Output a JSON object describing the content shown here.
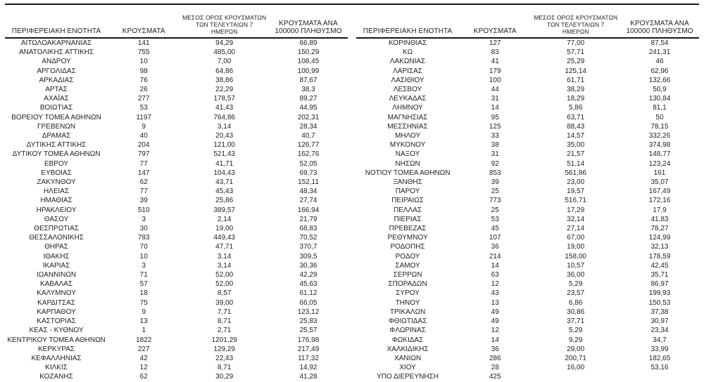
{
  "colors": {
    "background": "#ffffff",
    "text": "#1f1f1f",
    "rule": "#161616"
  },
  "table_headers": {
    "region": "ΠΕΡΙΦΕΡΕΙΑΚΗ ΕΝΟΤΗΤΑ",
    "cases": "ΚΡΟΥΣΜΑΤΑ",
    "avg7": "ΜΕΣΟΣ ΟΡΟΣ ΚΡΟΥΣΜΑΤΩΝ ΤΩΝ ΤΕΛΕΥΤΑΙΩΝ 7 ΗΜΕΡΩΝ",
    "per100k": "ΚΡΟΥΣΜΑΤΑ ΑΝΑ 100000 ΠΛΗΘΥΣΜΟ"
  },
  "left_table": {
    "rows": [
      [
        "ΑΙΤΩΛΟΑΚΑΡΝΑΝΙΑΣ",
        "141",
        "94,29",
        "66,89"
      ],
      [
        "ΑΝΑΤΟΛΙΚΗΣ ΑΤΤΙΚΗΣ",
        "755",
        "485,00",
        "150,29"
      ],
      [
        "ΑΝΔΡΟΥ",
        "10",
        "7,00",
        "108,45"
      ],
      [
        "ΑΡΓΟΛΙΔΑΣ",
        "98",
        "64,86",
        "100,99"
      ],
      [
        "ΑΡΚΑΔΙΑΣ",
        "76",
        "38,86",
        "87,67"
      ],
      [
        "ΑΡΤΑΣ",
        "26",
        "22,29",
        "38,3"
      ],
      [
        "ΑΧΑΪΑΣ",
        "277",
        "178,57",
        "89,27"
      ],
      [
        "ΒΟΙΩΤΙΑΣ",
        "53",
        "41,43",
        "44,95"
      ],
      [
        "ΒΟΡΕΙΟΥ ΤΟΜΕΑ ΑΘΗΝΩΝ",
        "1197",
        "764,86",
        "202,31"
      ],
      [
        "ΓΡΕΒΕΝΩΝ",
        "9",
        "3,14",
        "28,34"
      ],
      [
        "ΔΡΑΜΑΣ",
        "40",
        "20,43",
        "40,7"
      ],
      [
        "ΔΥΤΙΚΗΣ ΑΤΤΙΚΗΣ",
        "204",
        "121,00",
        "126,77"
      ],
      [
        "ΔΥΤΙΚΟΥ ΤΟΜΕΑ ΑΘΗΝΩΝ",
        "797",
        "521,43",
        "162,76"
      ],
      [
        "ΕΒΡΟΥ",
        "77",
        "41,71",
        "52,05"
      ],
      [
        "ΕΥΒΟΙΑΣ",
        "147",
        "104,43",
        "69,73"
      ],
      [
        "ΖΑΚΥΝΘΟΥ",
        "62",
        "43,71",
        "152,11"
      ],
      [
        "ΗΛΕΙΑΣ",
        "77",
        "45,43",
        "48,34"
      ],
      [
        "ΗΜΑΘΙΑΣ",
        "39",
        "25,86",
        "27,74"
      ],
      [
        "ΗΡΑΚΛΕΙΟΥ",
        "510",
        "389,57",
        "166,94"
      ],
      [
        "ΘΑΣΟΥ",
        "3",
        "2,14",
        "21,79"
      ],
      [
        "ΘΕΣΠΡΩΤΙΑΣ",
        "30",
        "19,00",
        "68,83"
      ],
      [
        "ΘΕΣΣΑΛΟΝΙΚΗΣ",
        "783",
        "449,43",
        "70,52"
      ],
      [
        "ΘΗΡΑΣ",
        "70",
        "47,71",
        "370,7"
      ],
      [
        "ΙΘΑΚΗΣ",
        "10",
        "3,14",
        "309,5"
      ],
      [
        "ΙΚΑΡΙΑΣ",
        "3",
        "3,14",
        "30,36"
      ],
      [
        "ΙΩΑΝΝΙΝΩΝ",
        "71",
        "52,00",
        "42,29"
      ],
      [
        "ΚΑΒΑΛΑΣ",
        "57",
        "52,00",
        "45,63"
      ],
      [
        "ΚΑΛΥΜΝΟΥ",
        "18",
        "8,57",
        "61,12"
      ],
      [
        "ΚΑΡΔΙΤΣΑΣ",
        "75",
        "39,00",
        "66,05"
      ],
      [
        "ΚΑΡΠΑΘΟΥ",
        "9",
        "7,71",
        "123,12"
      ],
      [
        "ΚΑΣΤΟΡΙΑΣ",
        "13",
        "8,71",
        "25,83"
      ],
      [
        "ΚΕΑΣ - ΚΥΘΝΟΥ",
        "1",
        "2,71",
        "25,57"
      ],
      [
        "ΚΕΝΤΡΙΚΟΥ ΤΟΜΕΑ ΑΘΗΝΩΝ",
        "1822",
        "1201,29",
        "176,98"
      ],
      [
        "ΚΕΡΚΥΡΑΣ",
        "227",
        "129,29",
        "217,49"
      ],
      [
        "ΚΕΦΑΛΛΗΝΙΑΣ",
        "42",
        "22,43",
        "117,32"
      ],
      [
        "ΚΙΛΚΙΣ",
        "12",
        "8,71",
        "14,92"
      ],
      [
        "ΚΟΖΑΝΗΣ",
        "62",
        "30,29",
        "41,28"
      ]
    ]
  },
  "right_table": {
    "rows": [
      [
        "ΚΟΡΙΝΘΙΑΣ",
        "127",
        "77,00",
        "87,54"
      ],
      [
        "ΚΩ",
        "83",
        "57,71",
        "241,31"
      ],
      [
        "ΛΑΚΩΝΙΑΣ",
        "41",
        "25,29",
        "46"
      ],
      [
        "ΛΑΡΙΣΑΣ",
        "179",
        "125,14",
        "62,96"
      ],
      [
        "ΛΑΣΙΘΙΟΥ",
        "100",
        "61,71",
        "132,66"
      ],
      [
        "ΛΕΣΒΟΥ",
        "44",
        "38,29",
        "50,9"
      ],
      [
        "ΛΕΥΚΑΔΑΣ",
        "31",
        "18,29",
        "130,84"
      ],
      [
        "ΛΗΜΝΟΥ",
        "14",
        "5,86",
        "81,1"
      ],
      [
        "ΜΑΓΝΗΣΙΑΣ",
        "95",
        "63,71",
        "50"
      ],
      [
        "ΜΕΣΣΗΝΙΑΣ",
        "125",
        "88,43",
        "78,15"
      ],
      [
        "ΜΗΛΟΥ",
        "33",
        "14,57",
        "332,26"
      ],
      [
        "ΜΥΚΟΝΟΥ",
        "38",
        "35,00",
        "374,98"
      ],
      [
        "ΝΑΞΟΥ",
        "31",
        "21,57",
        "148,77"
      ],
      [
        "ΝΗΣΩΝ",
        "92",
        "51,14",
        "123,24"
      ],
      [
        "ΝΟΤΙΟΥ ΤΟΜΕΑ ΑΘΗΝΩΝ",
        "853",
        "561,86",
        "161"
      ],
      [
        "ΞΑΝΘΗΣ",
        "39",
        "23,00",
        "35,07"
      ],
      [
        "ΠΑΡΟΥ",
        "25",
        "19,57",
        "167,49"
      ],
      [
        "ΠΕΙΡΑΙΩΣ",
        "773",
        "516,71",
        "172,16"
      ],
      [
        "ΠΕΛΛΑΣ",
        "25",
        "17,29",
        "17,9"
      ],
      [
        "ΠΙΕΡΙΑΣ",
        "53",
        "32,14",
        "41,83"
      ],
      [
        "ΠΡΕΒΕΖΑΣ",
        "45",
        "27,14",
        "78,27"
      ],
      [
        "ΡΕΘΥΜΝΟΥ",
        "107",
        "67,00",
        "124,99"
      ],
      [
        "ΡΟΔΟΠΗΣ",
        "36",
        "19,00",
        "32,13"
      ],
      [
        "ΡΟΔΟΥ",
        "214",
        "158,00",
        "178,59"
      ],
      [
        "ΣΑΜΟΥ",
        "14",
        "10,57",
        "42,45"
      ],
      [
        "ΣΕΡΡΩΝ",
        "63",
        "36,00",
        "35,71"
      ],
      [
        "ΣΠΟΡΑΔΩΝ",
        "12",
        "5,29",
        "86,97"
      ],
      [
        "ΣΥΡΟΥ",
        "43",
        "23,57",
        "199,93"
      ],
      [
        "ΤΗΝΟΥ",
        "13",
        "6,86",
        "150,53"
      ],
      [
        "ΤΡΙΚΑΛΩΝ",
        "49",
        "30,86",
        "37,38"
      ],
      [
        "ΦΘΙΩΤΙΔΑΣ",
        "49",
        "37,71",
        "30,97"
      ],
      [
        "ΦΛΩΡΙΝΑΣ",
        "12",
        "5,29",
        "23,34"
      ],
      [
        "ΦΩΚΙΔΑΣ",
        "14",
        "9,29",
        "34,7"
      ],
      [
        "ΧΑΛΚΙΔΙΚΗΣ",
        "36",
        "29,00",
        "33,99"
      ],
      [
        "ΧΑΝΙΩΝ",
        "286",
        "200,71",
        "182,65"
      ],
      [
        "ΧΙΟΥ",
        "28",
        "16,00",
        "53,16"
      ],
      [
        "ΥΠΟ ΔΙΕΡΕΥΝΗΣΗ",
        "425",
        "",
        ""
      ]
    ]
  }
}
